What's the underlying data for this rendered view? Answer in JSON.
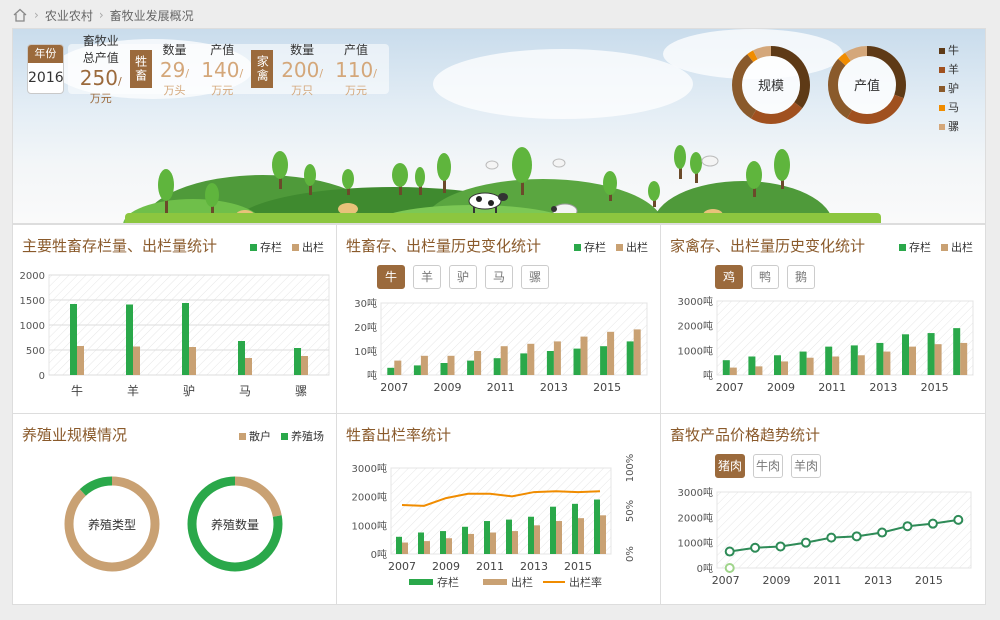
{
  "breadcrumb": {
    "home_icon": "home-icon",
    "items": [
      "农业农村",
      "畜牧业发展概况"
    ]
  },
  "hero": {
    "year_label": "年份",
    "year_value": "2016",
    "total": {
      "label": "畜牧业总产值",
      "value": "250",
      "unit": "/万元"
    },
    "livestock": {
      "badge": "牲畜",
      "count_label": "数量",
      "count_value": "29",
      "count_unit": "/万头",
      "output_label": "产值",
      "output_value": "140",
      "output_unit": "/万元"
    },
    "poultry": {
      "badge": "家禽",
      "count_label": "数量",
      "count_value": "200",
      "count_unit": "/万只",
      "output_label": "产值",
      "output_value": "110",
      "output_unit": "/万元"
    },
    "donuts": [
      "规模",
      "产值"
    ],
    "legend": [
      {
        "name": "牛",
        "color": "#5e3a16"
      },
      {
        "name": "羊",
        "color": "#a0501f"
      },
      {
        "name": "驴",
        "color": "#8a5a2b"
      },
      {
        "name": "马",
        "color": "#f08c00"
      },
      {
        "name": "骡",
        "color": "#d4a77a"
      }
    ]
  },
  "colors": {
    "stock": "#2aa84a",
    "out": "#c9a173",
    "rate": "#f08c00",
    "brown": "#9b6a3c"
  },
  "panels": {
    "p1": {
      "title": "主要牲畜存栏量、出栏量统计",
      "legend": [
        "存栏",
        "出栏"
      ]
    },
    "p2": {
      "title": "牲畜存、出栏量历史变化统计",
      "legend": [
        "存栏",
        "出栏"
      ],
      "tabs": [
        "牛",
        "羊",
        "驴",
        "马",
        "骡"
      ]
    },
    "p3": {
      "title": "家禽存、出栏量历史变化统计",
      "legend": [
        "存栏",
        "出栏"
      ],
      "tabs": [
        "鸡",
        "鸭",
        "鹅"
      ]
    },
    "p4": {
      "title": "养殖业规模情况",
      "legend": [
        "散户",
        "养殖场"
      ],
      "donuts": [
        "养殖类型",
        "养殖数量"
      ]
    },
    "p5": {
      "title": "牲畜出栏率统计",
      "legend": [
        "存栏",
        "出栏",
        "出栏率"
      ]
    },
    "p6": {
      "title": "畜牧产品价格趋势统计",
      "tabs": [
        "猪肉",
        "牛肉",
        "羊肉"
      ]
    }
  },
  "chart_data": [
    {
      "type": "bar",
      "title": "主要牲畜存栏量、出栏量统计",
      "categories": [
        "牛",
        "羊",
        "驴",
        "马",
        "骡"
      ],
      "series": [
        {
          "name": "存栏",
          "values": [
            1420,
            1410,
            1440,
            680,
            540
          ]
        },
        {
          "name": "出栏",
          "values": [
            580,
            570,
            560,
            340,
            380
          ]
        }
      ],
      "ylim": [
        0,
        2000
      ],
      "yticks": [
        "0",
        "500",
        "1000",
        "1500",
        "2000"
      ]
    },
    {
      "type": "bar",
      "title": "牲畜存、出栏量历史变化统计",
      "categories": [
        "2007",
        "2008",
        "2009",
        "2010",
        "2011",
        "2012",
        "2013",
        "2014",
        "2015",
        "2016"
      ],
      "xticks": [
        "2007",
        "2009",
        "2011",
        "2013",
        "2015"
      ],
      "series": [
        {
          "name": "存栏",
          "values": [
            3,
            4,
            5,
            6,
            7,
            9,
            10,
            11,
            12,
            14
          ]
        },
        {
          "name": "出栏",
          "values": [
            6,
            8,
            8,
            10,
            12,
            13,
            14,
            16,
            18,
            19
          ]
        }
      ],
      "ylim": [
        0,
        30
      ],
      "yticks": [
        "吨",
        "10吨",
        "20吨",
        "30吨"
      ]
    },
    {
      "type": "bar",
      "title": "家禽存、出栏量历史变化统计",
      "categories": [
        "2007",
        "2008",
        "2009",
        "2010",
        "2011",
        "2012",
        "2013",
        "2014",
        "2015",
        "2016"
      ],
      "xticks": [
        "2007",
        "2009",
        "2011",
        "2013",
        "2015"
      ],
      "series": [
        {
          "name": "存栏",
          "values": [
            600,
            750,
            800,
            950,
            1150,
            1200,
            1300,
            1650,
            1700,
            1900
          ]
        },
        {
          "name": "出栏",
          "values": [
            300,
            350,
            550,
            700,
            750,
            800,
            950,
            1150,
            1250,
            1300
          ]
        }
      ],
      "ylim": [
        0,
        3000
      ],
      "yticks": [
        "吨",
        "1000吨",
        "2000吨",
        "3000吨"
      ]
    },
    {
      "type": "pie",
      "title": "养殖业规模情况",
      "charts": [
        {
          "label": "养殖类型",
          "slices": [
            {
              "name": "散户",
              "value": 88
            },
            {
              "name": "养殖场",
              "value": 12
            }
          ]
        },
        {
          "label": "养殖数量",
          "slices": [
            {
              "name": "散户",
              "value": 22
            },
            {
              "name": "养殖场",
              "value": 78
            }
          ]
        }
      ]
    },
    {
      "type": "bar",
      "title": "牲畜出栏率统计",
      "categories": [
        "2007",
        "2008",
        "2009",
        "2010",
        "2011",
        "2012",
        "2013",
        "2014",
        "2015",
        "2016"
      ],
      "xticks": [
        "2007",
        "2009",
        "2011",
        "2013",
        "2015"
      ],
      "series": [
        {
          "name": "存栏",
          "values": [
            600,
            750,
            800,
            950,
            1150,
            1200,
            1300,
            1650,
            1750,
            1900
          ]
        },
        {
          "name": "出栏",
          "values": [
            400,
            450,
            550,
            700,
            750,
            800,
            1000,
            1150,
            1250,
            1350
          ]
        },
        {
          "name": "出栏率",
          "type": "line",
          "values": [
            57,
            56,
            65,
            70,
            70,
            67,
            72,
            73,
            72,
            73
          ]
        }
      ],
      "ylim": [
        0,
        3000
      ],
      "yticks": [
        "0吨",
        "1000吨",
        "2000吨",
        "3000吨"
      ],
      "y2ticks": [
        "0%",
        "50%",
        "100%"
      ]
    },
    {
      "type": "line",
      "title": "畜牧产品价格趋势统计",
      "categories": [
        "2007",
        "2008",
        "2009",
        "2010",
        "2011",
        "2012",
        "2013",
        "2014",
        "2015",
        "2016"
      ],
      "xticks": [
        "2007",
        "2009",
        "2011",
        "2013",
        "2015"
      ],
      "series": [
        {
          "name": "猪肉",
          "values": [
            650,
            800,
            850,
            1000,
            1200,
            1250,
            1400,
            1650,
            1750,
            1900
          ]
        }
      ],
      "ylim": [
        0,
        3000
      ],
      "yticks": [
        "0吨",
        "1000吨",
        "2000吨",
        "3000吨"
      ]
    }
  ]
}
